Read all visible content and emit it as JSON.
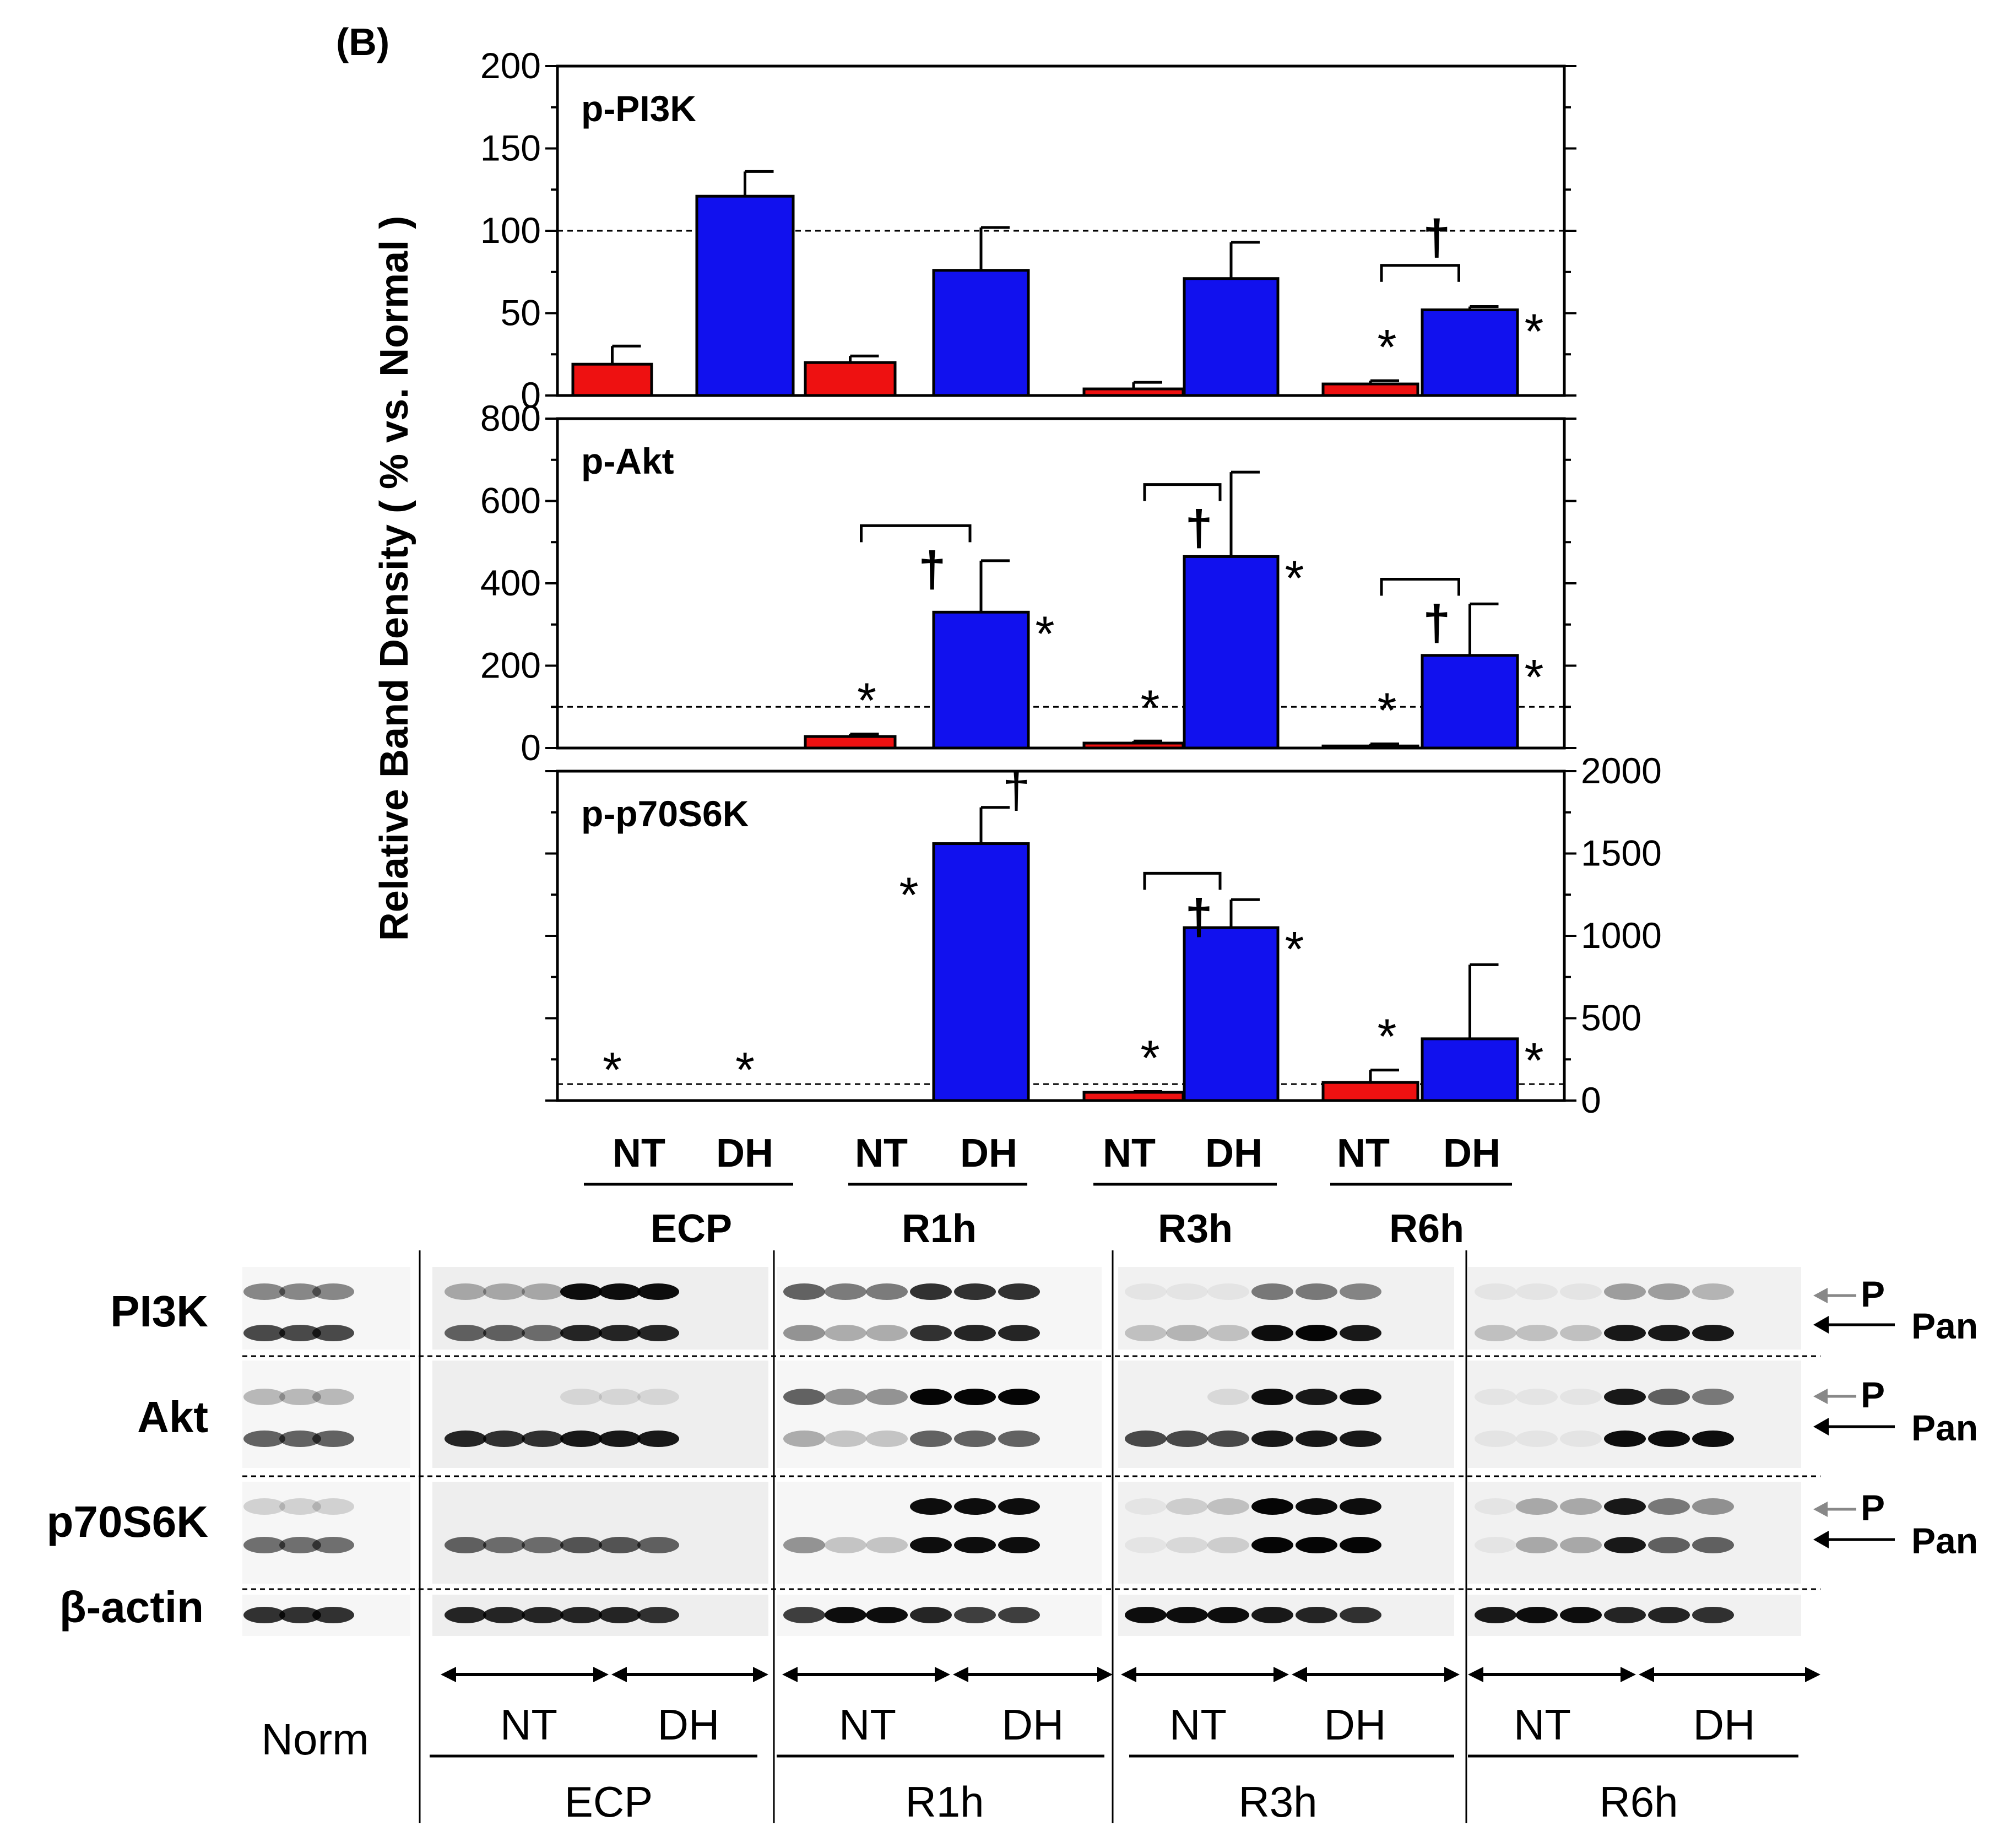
{
  "figure": {
    "panel_label": "(B)",
    "y_axis_title": "Relative Band Density ( % vs. Normal )",
    "colors": {
      "NT": "#ee1111",
      "DH": "#1111ee",
      "axis": "#000000",
      "reference": "#000000"
    }
  },
  "chart_data": [
    {
      "type": "bar",
      "title": "p-PI3K",
      "categories": [
        "ECP",
        "R1h",
        "R3h",
        "R6h"
      ],
      "group_labels": [
        "NT",
        "DH"
      ],
      "series": [
        {
          "name": "NT",
          "values": [
            19,
            20,
            4,
            7
          ],
          "errors": [
            11,
            4,
            4,
            2
          ]
        },
        {
          "name": "DH",
          "values": [
            121,
            76,
            71,
            52
          ],
          "errors": [
            15,
            26,
            22,
            2
          ]
        }
      ],
      "ylim": [
        0,
        200
      ],
      "yticks": [
        "200",
        "150",
        "100",
        "50",
        "0"
      ],
      "yaxis_side": "left",
      "reference_line": 100,
      "annotations": [
        {
          "text": "*",
          "group": "R6h",
          "series": "NT"
        },
        {
          "text": "*",
          "group": "R6h",
          "series": "DH"
        },
        {
          "text": "†",
          "group": "R6h",
          "series": "bracket"
        }
      ]
    },
    {
      "type": "bar",
      "title": "p-Akt",
      "categories": [
        "ECP",
        "R1h",
        "R3h",
        "R6h"
      ],
      "group_labels": [
        "NT",
        "DH"
      ],
      "series": [
        {
          "name": "NT",
          "values": [
            null,
            28,
            12,
            5
          ],
          "errors": [
            null,
            6,
            5,
            5
          ]
        },
        {
          "name": "DH",
          "values": [
            null,
            330,
            465,
            225
          ],
          "errors": [
            null,
            125,
            205,
            125
          ]
        }
      ],
      "ylim": [
        0,
        800
      ],
      "yticks": [
        "800",
        "600",
        "400",
        "200",
        "0"
      ],
      "yaxis_side": "left",
      "reference_line": 100,
      "annotations": [
        {
          "text": "*",
          "group": "R1h",
          "series": "NT"
        },
        {
          "text": "*",
          "group": "R1h",
          "series": "DH"
        },
        {
          "text": "†",
          "group": "R1h",
          "series": "bracket"
        },
        {
          "text": "*",
          "group": "R3h",
          "series": "NT"
        },
        {
          "text": "*",
          "group": "R3h",
          "series": "DH"
        },
        {
          "text": "†",
          "group": "R3h",
          "series": "bracket"
        },
        {
          "text": "*",
          "group": "R6h",
          "series": "NT"
        },
        {
          "text": "*",
          "group": "R6h",
          "series": "DH"
        },
        {
          "text": "†",
          "group": "R6h",
          "series": "bracket"
        }
      ]
    },
    {
      "type": "bar",
      "title": "p-p70S6K",
      "categories": [
        "ECP",
        "R1h",
        "R3h",
        "R6h"
      ],
      "group_labels": [
        "NT",
        "DH"
      ],
      "series": [
        {
          "name": "NT",
          "values": [
            null,
            null,
            50,
            110
          ],
          "errors": [
            null,
            null,
            5,
            75
          ]
        },
        {
          "name": "DH",
          "values": [
            null,
            1560,
            1050,
            375
          ],
          "errors": [
            null,
            220,
            170,
            450
          ]
        }
      ],
      "ylim": [
        0,
        2000
      ],
      "yticks": [
        "2000",
        "1500",
        "1000",
        "500",
        "0"
      ],
      "yaxis_side": "right",
      "reference_line": 100,
      "annotations": [
        {
          "text": "*",
          "group": "ECP",
          "series": "NT"
        },
        {
          "text": "*",
          "group": "ECP",
          "series": "DH"
        },
        {
          "text": "*",
          "group": "R1h",
          "series": "NT"
        },
        {
          "text": "†",
          "group": "R1h",
          "series": "DH"
        },
        {
          "text": "*",
          "group": "R3h",
          "series": "NT"
        },
        {
          "text": "*",
          "group": "R3h",
          "series": "DH"
        },
        {
          "text": "†",
          "group": "R3h",
          "series": "bracket"
        },
        {
          "text": "*",
          "group": "R6h",
          "series": "NT"
        },
        {
          "text": "*",
          "group": "R6h",
          "series": "DH"
        }
      ]
    }
  ],
  "chart_x_labels": {
    "groups": [
      {
        "name": "ECP",
        "sub": [
          "NT",
          "DH"
        ]
      },
      {
        "name": "R1h",
        "sub": [
          "NT",
          "DH"
        ]
      },
      {
        "name": "R3h",
        "sub": [
          "NT",
          "DH"
        ]
      },
      {
        "name": "R6h",
        "sub": [
          "NT",
          "DH"
        ]
      }
    ]
  },
  "blot": {
    "header_groups": [
      "ECP",
      "R1h",
      "R3h",
      "R6h"
    ],
    "rows": [
      {
        "label": "PI3K",
        "markers": [
          "P",
          "Pan"
        ]
      },
      {
        "label": "Akt",
        "markers": [
          "P",
          "Pan"
        ]
      },
      {
        "label": "p70S6K",
        "markers": [
          "P",
          "Pan"
        ]
      },
      {
        "label": "β-actin",
        "markers": []
      }
    ],
    "norm_label": "Norm",
    "bottom_groups": [
      {
        "name": "ECP",
        "sub": [
          "NT",
          "DH"
        ]
      },
      {
        "name": "R1h",
        "sub": [
          "NT",
          "DH"
        ]
      },
      {
        "name": "R3h",
        "sub": [
          "NT",
          "DH"
        ]
      },
      {
        "name": "R6h",
        "sub": [
          "NT",
          "DH"
        ]
      }
    ]
  }
}
